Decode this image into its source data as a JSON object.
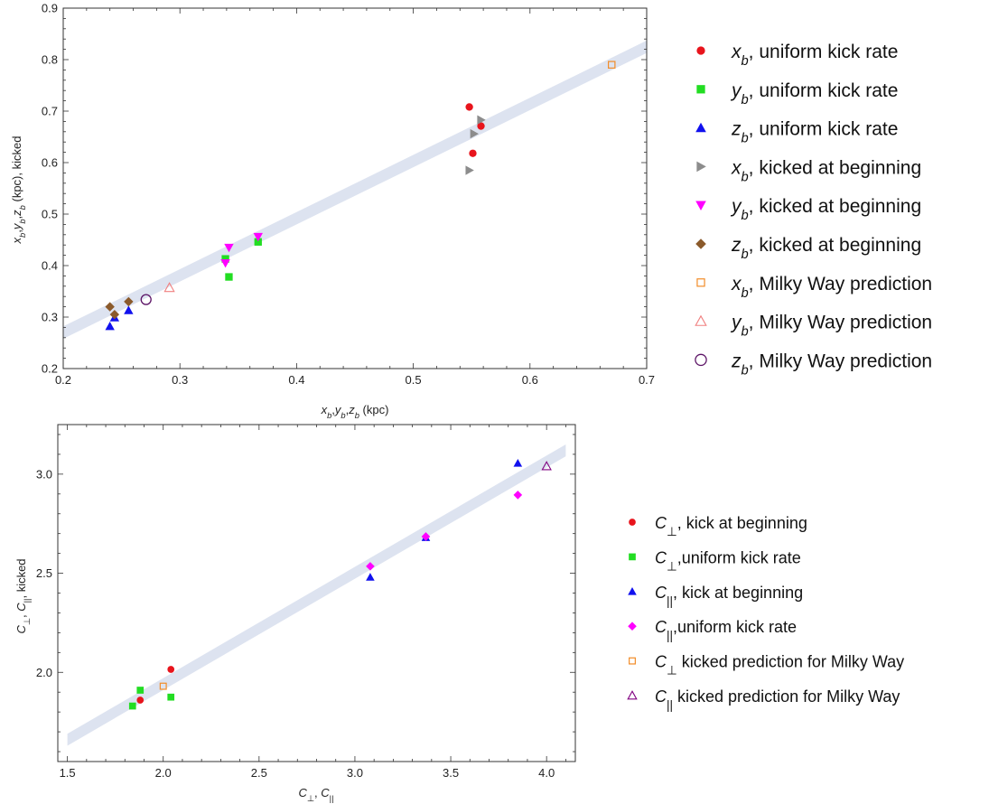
{
  "chart_data": [
    {
      "type": "scatter",
      "xlabel": "x_b,y_b,z_b (kpc)",
      "ylabel": "x_b,y_b,z_b (kpc), kicked",
      "xlim": [
        0.2,
        0.7
      ],
      "ylim": [
        0.2,
        0.9
      ],
      "x_ticks": [
        "0.2",
        "0.3",
        "0.4",
        "0.5",
        "0.6",
        "0.7"
      ],
      "y_ticks": [
        "0.2",
        "0.3",
        "0.4",
        "0.5",
        "0.6",
        "0.7",
        "0.8",
        "0.9"
      ],
      "fit_band": {
        "x": [
          0.2,
          0.7
        ],
        "y": [
          0.27,
          0.825
        ],
        "half_width": 0.012,
        "color": "#dde3f0"
      },
      "legend_placement": "right",
      "series": [
        {
          "name": "x_b, uniform kick rate",
          "marker": "circle",
          "color": "#e8141c",
          "points": [
            [
              0.548,
              0.708
            ],
            [
              0.558,
              0.671
            ],
            [
              0.551,
              0.618
            ]
          ]
        },
        {
          "name": "y_b, uniform kick rate",
          "marker": "square",
          "color": "#22dd22",
          "points": [
            [
              0.339,
              0.413
            ],
            [
              0.342,
              0.378
            ],
            [
              0.367,
              0.446
            ]
          ]
        },
        {
          "name": "z_b, uniform kick rate",
          "marker": "triangle-up",
          "color": "#1111ee",
          "points": [
            [
              0.24,
              0.282
            ],
            [
              0.244,
              0.299
            ],
            [
              0.256,
              0.313
            ]
          ]
        },
        {
          "name": "x_b, kicked at beginning",
          "marker": "triangle-right",
          "color": "#8c8c8c",
          "points": [
            [
              0.558,
              0.683
            ],
            [
              0.552,
              0.656
            ],
            [
              0.548,
              0.585
            ]
          ]
        },
        {
          "name": "y_b, kicked at beginning",
          "marker": "triangle-down",
          "color": "#ff00ff",
          "points": [
            [
              0.342,
              0.435
            ],
            [
              0.339,
              0.405
            ],
            [
              0.367,
              0.456
            ]
          ]
        },
        {
          "name": "z_b, kicked at beginning",
          "marker": "diamond",
          "color": "#8b5a2b",
          "points": [
            [
              0.24,
              0.32
            ],
            [
              0.244,
              0.305
            ],
            [
              0.256,
              0.33
            ]
          ]
        },
        {
          "name": "x_b, Milky Way prediction",
          "marker": "open-square",
          "color": "#f28c28",
          "points": [
            [
              0.67,
              0.79
            ]
          ]
        },
        {
          "name": "y_b, Milky Way prediction",
          "marker": "open-triangle-up",
          "color": "#f08080",
          "points": [
            [
              0.291,
              0.357
            ]
          ]
        },
        {
          "name": "z_b, Milky Way prediction",
          "marker": "open-circle",
          "color": "#5c1466",
          "points": [
            [
              0.271,
              0.334
            ]
          ]
        }
      ]
    },
    {
      "type": "scatter",
      "xlabel": "C⊥, C||",
      "ylabel": "C⊥, C||, kicked",
      "xlim": [
        1.45,
        4.15
      ],
      "ylim": [
        1.55,
        3.25
      ],
      "x_ticks": [
        "1.5",
        "2.0",
        "2.5",
        "3.0",
        "3.5",
        "4.0"
      ],
      "y_ticks": [
        "2.0",
        "2.5",
        "3.0"
      ],
      "fit_band": {
        "x": [
          1.5,
          4.1
        ],
        "y": [
          1.66,
          3.12
        ],
        "half_width": 0.03,
        "color": "#dde3f0"
      },
      "legend_placement": "right",
      "series": [
        {
          "name": "C⊥, kick at beginning",
          "marker": "circle",
          "color": "#e8141c",
          "points": [
            [
              1.88,
              1.86
            ],
            [
              2.04,
              2.015
            ]
          ]
        },
        {
          "name": "C⊥,uniform kick rate",
          "marker": "square",
          "color": "#22dd22",
          "points": [
            [
              1.84,
              1.83
            ],
            [
              1.88,
              1.91
            ],
            [
              2.04,
              1.875
            ]
          ]
        },
        {
          "name": "C||, kick at beginning",
          "marker": "triangle-up",
          "color": "#1111ee",
          "points": [
            [
              3.08,
              2.48
            ],
            [
              3.37,
              2.68
            ],
            [
              3.85,
              3.055
            ]
          ]
        },
        {
          "name": "C||,uniform kick rate",
          "marker": "diamond",
          "color": "#ff00ff",
          "points": [
            [
              3.08,
              2.535
            ],
            [
              3.37,
              2.685
            ],
            [
              3.85,
              2.895
            ]
          ]
        },
        {
          "name": "C⊥ kicked prediction for Milky Way",
          "marker": "open-square",
          "color": "#f28c28",
          "points": [
            [
              2.0,
              1.93
            ]
          ]
        },
        {
          "name": "C|| kicked prediction for Milky Way",
          "marker": "open-triangle-up",
          "color": "#800080",
          "points": [
            [
              4.0,
              3.04
            ]
          ]
        }
      ]
    }
  ],
  "legends": {
    "top": [
      {
        "sym": "x",
        "sub": "b",
        "text": ", uniform kick rate"
      },
      {
        "sym": "y",
        "sub": "b",
        "text": ", uniform kick rate"
      },
      {
        "sym": "z",
        "sub": "b",
        "text": ", uniform kick rate"
      },
      {
        "sym": "x",
        "sub": "b",
        "text": ", kicked at beginning"
      },
      {
        "sym": "y",
        "sub": "b",
        "text": ", kicked at beginning"
      },
      {
        "sym": "z",
        "sub": "b",
        "text": ", kicked at beginning"
      },
      {
        "sym": "x",
        "sub": "b",
        "text": ", Milky Way prediction"
      },
      {
        "sym": "y",
        "sub": "b",
        "text": ", Milky Way prediction"
      },
      {
        "sym": "z",
        "sub": "b",
        "text": ", Milky Way prediction"
      }
    ],
    "bottom": [
      {
        "sym": "C",
        "sub": "⊥",
        "text": ", kick at beginning"
      },
      {
        "sym": "C",
        "sub": "⊥",
        "text": ",uniform kick rate"
      },
      {
        "sym": "C",
        "sub": "||",
        "text": ", kick at beginning"
      },
      {
        "sym": "C",
        "sub": "||",
        "text": ",uniform kick rate"
      },
      {
        "sym": "C",
        "sub": "⊥",
        "text": " kicked prediction for Milky Way"
      },
      {
        "sym": "C",
        "sub": "||",
        "text": " kicked prediction for Milky Way"
      }
    ]
  }
}
